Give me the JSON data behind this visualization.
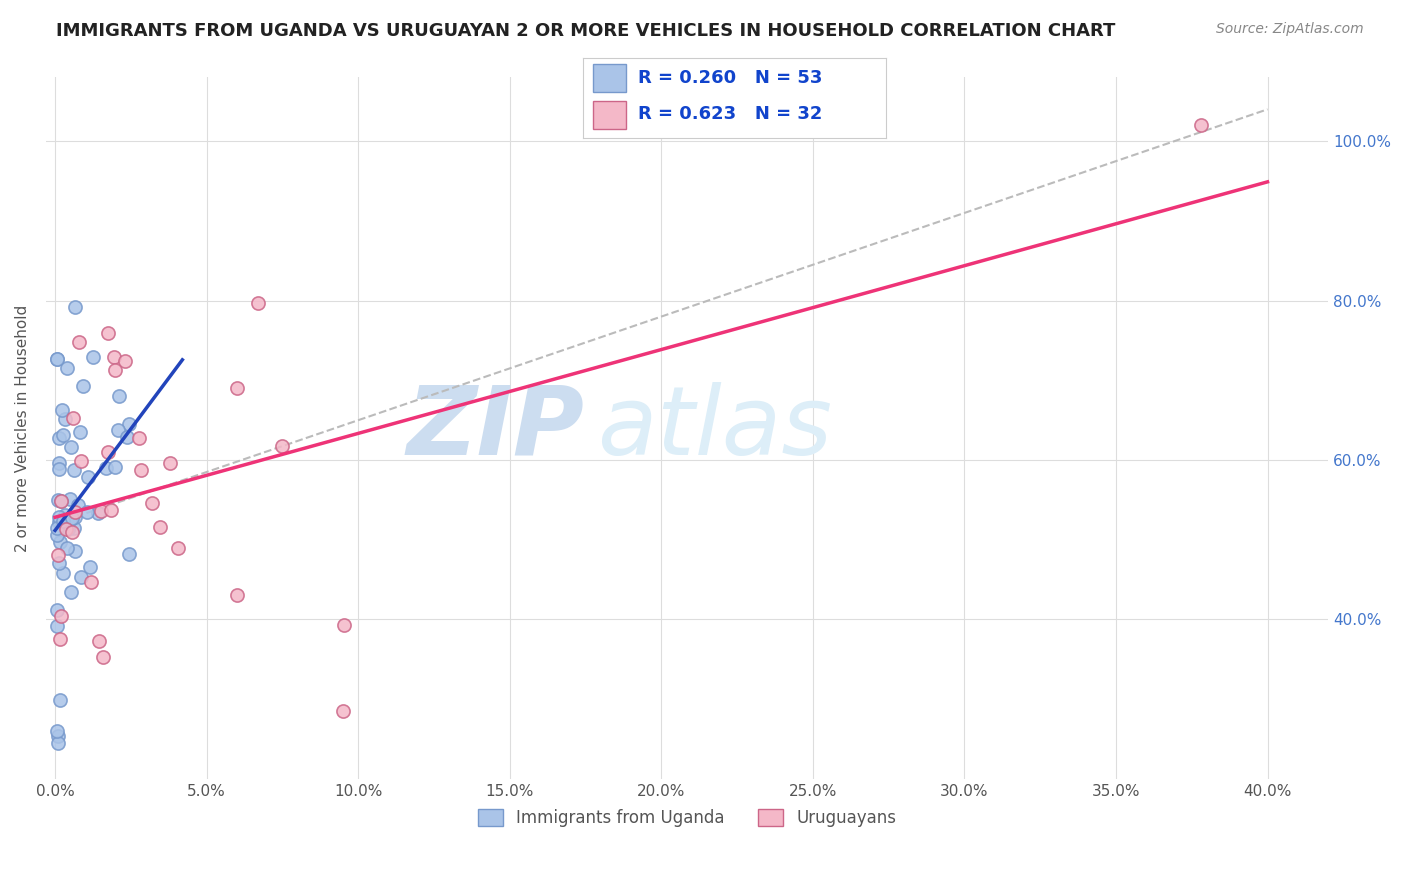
{
  "title": "IMMIGRANTS FROM UGANDA VS URUGUAYAN 2 OR MORE VEHICLES IN HOUSEHOLD CORRELATION CHART",
  "source": "Source: ZipAtlas.com",
  "ylabel": "2 or more Vehicles in Household",
  "legend_blue_r": "R = 0.260",
  "legend_blue_n": "N = 53",
  "legend_pink_r": "R = 0.623",
  "legend_pink_n": "N = 32",
  "blue_color": "#aac4e8",
  "blue_edge": "#7799cc",
  "pink_color": "#f4b8c8",
  "pink_edge": "#cc6688",
  "blue_line_color": "#2244bb",
  "pink_line_color": "#ee3377",
  "ref_line_color": "#bbbbbb",
  "watermark_zip": "ZIP",
  "watermark_atlas": "atlas",
  "watermark_color": "#ccddf0",
  "xlim": [
    -0.003,
    0.42
  ],
  "ylim": [
    0.2,
    1.08
  ],
  "x_tick_positions": [
    0.0,
    0.05,
    0.1,
    0.15,
    0.2,
    0.25,
    0.3,
    0.35,
    0.4
  ],
  "x_tick_labels": [
    "0.0%",
    "5.0%",
    "10.0%",
    "15.0%",
    "20.0%",
    "25.0%",
    "30.0%",
    "35.0%",
    "40.0%"
  ],
  "y_tick_positions": [
    0.4,
    0.6,
    0.8,
    1.0
  ],
  "y_tick_labels": [
    "40.0%",
    "60.0%",
    "80.0%",
    "100.0%"
  ],
  "legend_label_blue": "Immigrants from Uganda",
  "legend_label_pink": "Uruguayans",
  "r_blue": 0.26,
  "r_pink": 0.623,
  "n_blue": 53,
  "n_pink": 32
}
